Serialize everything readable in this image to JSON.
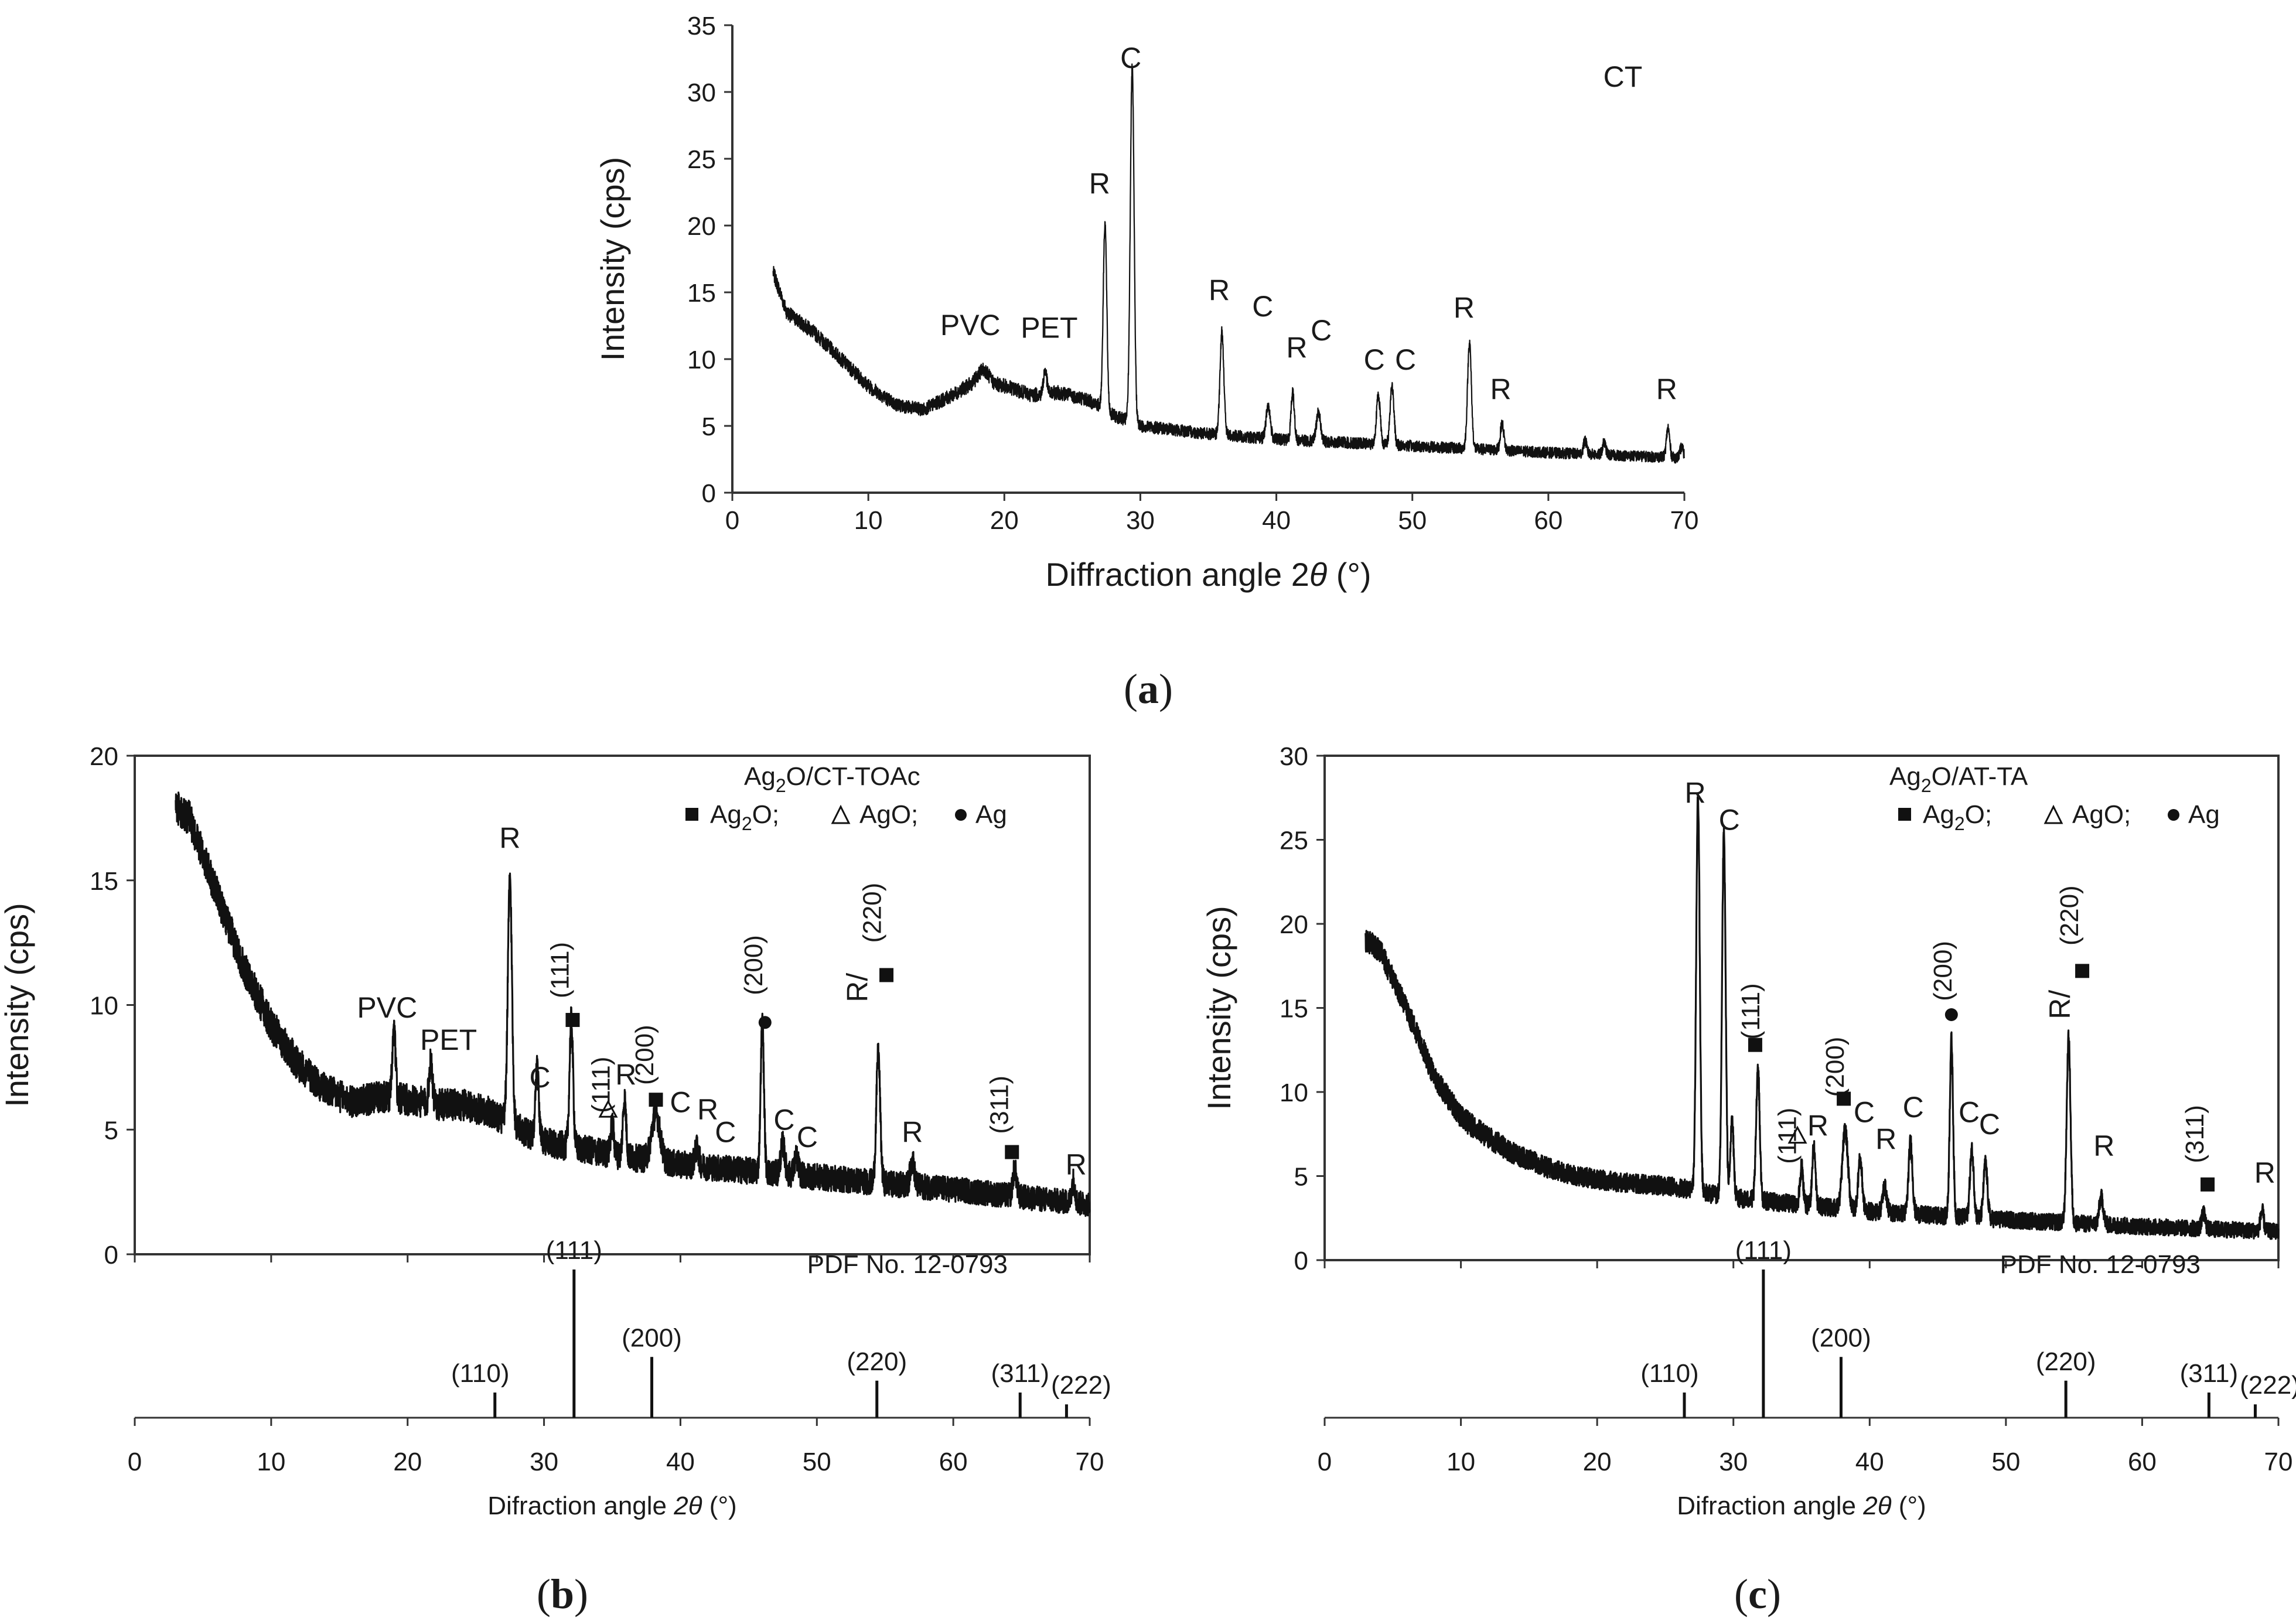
{
  "panel_labels": {
    "a": "a",
    "b": "b",
    "c": "c",
    "open": "(",
    "close": ")"
  },
  "reference": "PDF No. 12-0793",
  "colors": {
    "line": "#111111",
    "axis": "#333333",
    "text": "#1a1a1a"
  },
  "chart_data": [
    {
      "id": "a",
      "type": "line",
      "title": "CT",
      "xlabel_prefix": "Diffraction angle 2",
      "xlabel_theta": "θ",
      "xlabel_suffix": " (°)",
      "ylabel": "Intensity (cps)",
      "xlim": [
        0,
        70
      ],
      "ylim": [
        0,
        35
      ],
      "xticks": [
        0,
        10,
        20,
        30,
        40,
        50,
        60,
        70
      ],
      "yticks": [
        0,
        5,
        10,
        15,
        20,
        25,
        30,
        35
      ],
      "x_start": 3,
      "x_end": 70,
      "baseline": [
        [
          3,
          16.5
        ],
        [
          4,
          13.5
        ],
        [
          6,
          12
        ],
        [
          8,
          10
        ],
        [
          10,
          8
        ],
        [
          12,
          6.6
        ],
        [
          14,
          6.2
        ],
        [
          16,
          7.2
        ],
        [
          18,
          8.4
        ],
        [
          20,
          8
        ],
        [
          22,
          7.3
        ],
        [
          24,
          7.5
        ],
        [
          26,
          7
        ],
        [
          27,
          6.5
        ],
        [
          28,
          5.8
        ],
        [
          30,
          5
        ],
        [
          35,
          4.4
        ],
        [
          40,
          4
        ],
        [
          50,
          3.5
        ],
        [
          60,
          3
        ],
        [
          70,
          2.6
        ]
      ],
      "peaks": [
        [
          18.5,
          0.9,
          0.35
        ],
        [
          23,
          1.8,
          0.12
        ],
        [
          27.4,
          14,
          0.13
        ],
        [
          29.4,
          26.5,
          0.14
        ],
        [
          36,
          7.7,
          0.14
        ],
        [
          39.4,
          2.5,
          0.15
        ],
        [
          41.2,
          3.6,
          0.12
        ],
        [
          43.1,
          2.2,
          0.15
        ],
        [
          47.5,
          3.7,
          0.14
        ],
        [
          48.5,
          4.4,
          0.14
        ],
        [
          54.2,
          8,
          0.14
        ],
        [
          56.6,
          2,
          0.13
        ],
        [
          62.7,
          1,
          0.12
        ],
        [
          64.1,
          0.9,
          0.12
        ],
        [
          68.8,
          2.2,
          0.12
        ],
        [
          69.8,
          0.8,
          0.12
        ]
      ],
      "noise": 0.55,
      "labels": [
        {
          "text": "C",
          "x": 29.3,
          "y": 31.8
        },
        {
          "text": "R",
          "x": 27.0,
          "y": 22.4
        },
        {
          "text": "R",
          "x": 35.8,
          "y": 14.4
        },
        {
          "text": "PVC",
          "x": 17.5,
          "y": 11.8
        },
        {
          "text": "PET",
          "x": 23.3,
          "y": 11.6
        },
        {
          "text": "C",
          "x": 39.0,
          "y": 13.2
        },
        {
          "text": "R",
          "x": 41.5,
          "y": 10.1
        },
        {
          "text": "C",
          "x": 43.3,
          "y": 11.4
        },
        {
          "text": "C",
          "x": 47.2,
          "y": 9.2
        },
        {
          "text": "C",
          "x": 49.5,
          "y": 9.2
        },
        {
          "text": "R",
          "x": 53.8,
          "y": 13.1
        },
        {
          "text": "R",
          "x": 56.5,
          "y": 7.0
        },
        {
          "text": "R",
          "x": 68.7,
          "y": 7.0
        }
      ]
    },
    {
      "id": "b",
      "type": "line",
      "title_main": "Ag",
      "title_sub": "2",
      "title_rest": "O/CT-TOAc",
      "legend_ag2o": "Ag",
      "legend_ag2o_sub": "2",
      "legend_ag2o_rest": "O;",
      "legend_ago": "AgO;",
      "legend_ag": "Ag",
      "xlabel_prefix": "Difraction angle ",
      "xlabel_theta": "2θ",
      "xlabel_suffix": " (°)",
      "ylabel": "Intensity (cps)",
      "xlim": [
        0,
        70
      ],
      "ylim": [
        0,
        20
      ],
      "xticks": [
        0,
        10,
        20,
        30,
        40,
        50,
        60,
        70
      ],
      "yticks": [
        0,
        5,
        10,
        15,
        20
      ],
      "x_start": 3,
      "x_end": 70,
      "baseline": [
        [
          3,
          18
        ],
        [
          4,
          17.5
        ],
        [
          6,
          14.5
        ],
        [
          8,
          11.5
        ],
        [
          10,
          9.2
        ],
        [
          12,
          7.6
        ],
        [
          14,
          6.6
        ],
        [
          16,
          6.1
        ],
        [
          18,
          6.3
        ],
        [
          20,
          6.2
        ],
        [
          22,
          6
        ],
        [
          24,
          6
        ],
        [
          26,
          5.7
        ],
        [
          28,
          5.1
        ],
        [
          30,
          4.5
        ],
        [
          35,
          4
        ],
        [
          40,
          3.6
        ],
        [
          50,
          3.1
        ],
        [
          60,
          2.6
        ],
        [
          70,
          2
        ]
      ],
      "peaks": [
        [
          19,
          2.7,
          0.12
        ],
        [
          21.7,
          1.8,
          0.12
        ],
        [
          27.5,
          9.8,
          0.15
        ],
        [
          29.5,
          2.8,
          0.12
        ],
        [
          32,
          5.1,
          0.13
        ],
        [
          35,
          1.2,
          0.12
        ],
        [
          35.9,
          2.3,
          0.12
        ],
        [
          38.2,
          1.9,
          0.3
        ],
        [
          41.2,
          0.7,
          0.15
        ],
        [
          46,
          6,
          0.12
        ],
        [
          47.5,
          1.2,
          0.15
        ],
        [
          48.5,
          0.7,
          0.15
        ],
        [
          54.5,
          5.2,
          0.14
        ],
        [
          57,
          1,
          0.15
        ],
        [
          64.5,
          1.1,
          0.13
        ],
        [
          68.8,
          0.9,
          0.12
        ]
      ],
      "noise": 0.7,
      "labels": [
        {
          "text": "R",
          "x": 27.5,
          "y": 16.3,
          "rot": 0
        },
        {
          "text": "PVC",
          "x": 18.5,
          "y": 9.5,
          "rot": 0
        },
        {
          "text": "PET",
          "x": 23.0,
          "y": 8.2,
          "rot": 0
        },
        {
          "text": "C",
          "x": 29.7,
          "y": 6.7,
          "rot": 0
        },
        {
          "text": "(111)",
          "x": 31.8,
          "y": 11.4,
          "rot": -90
        },
        {
          "text": "(111)",
          "x": 34.8,
          "y": 6.8,
          "rot": -90
        },
        {
          "text": "R",
          "x": 36.0,
          "y": 6.8,
          "rot": 0
        },
        {
          "text": "(200)",
          "x": 38.0,
          "y": 8.0,
          "rot": -90
        },
        {
          "text": "C",
          "x": 40.0,
          "y": 5.7,
          "rot": 0
        },
        {
          "text": "R",
          "x": 42.0,
          "y": 5.4,
          "rot": 0
        },
        {
          "text": "C",
          "x": 43.3,
          "y": 4.5,
          "rot": 0
        },
        {
          "text": "(200)",
          "x": 46.0,
          "y": 11.6,
          "rot": -90
        },
        {
          "text": "C",
          "x": 47.6,
          "y": 5.0,
          "rot": 0
        },
        {
          "text": "C",
          "x": 49.3,
          "y": 4.3,
          "rot": 0
        },
        {
          "text": "R/",
          "x": 53.7,
          "y": 10.7,
          "rot": -90
        },
        {
          "text": "(220)",
          "x": 54.7,
          "y": 13.7,
          "rot": -90
        },
        {
          "text": "R",
          "x": 57.0,
          "y": 4.5,
          "rot": 0
        },
        {
          "text": "(311)",
          "x": 64.0,
          "y": 6.0,
          "rot": -90
        },
        {
          "text": "R",
          "x": 69.0,
          "y": 3.2,
          "rot": 0
        }
      ],
      "markers": [
        {
          "type": "square",
          "x": 32.1,
          "y": 9.4
        },
        {
          "type": "square",
          "x": 38.2,
          "y": 6.2
        },
        {
          "type": "square",
          "x": 55.1,
          "y": 11.2
        },
        {
          "type": "square",
          "x": 64.3,
          "y": 4.1
        },
        {
          "type": "circle",
          "x": 46.2,
          "y": 9.3
        },
        {
          "type": "triangle",
          "x": 34.7,
          "y": 5.8
        }
      ],
      "ref_pattern": {
        "xlim": [
          0,
          70
        ],
        "xticks": [
          0,
          10,
          20,
          30,
          40,
          50,
          60,
          70
        ],
        "lines": [
          {
            "label": "(110)",
            "x": 26.4,
            "h": 0.17
          },
          {
            "label": "(111)",
            "x": 32.2,
            "h": 1.0
          },
          {
            "label": "(200)",
            "x": 37.9,
            "h": 0.41
          },
          {
            "label": "(220)",
            "x": 54.4,
            "h": 0.25
          },
          {
            "label": "(311)",
            "x": 64.9,
            "h": 0.17
          },
          {
            "label": "(222)",
            "x": 68.3,
            "h": 0.09
          }
        ]
      }
    },
    {
      "id": "c",
      "type": "line",
      "title_main": "Ag",
      "title_sub": "2",
      "title_rest": "O/AT-TA",
      "legend_ag2o": "Ag",
      "legend_ag2o_sub": "2",
      "legend_ag2o_rest": "O;",
      "legend_ago": "AgO;",
      "legend_ag": "Ag",
      "xlabel_prefix": "Difraction angle ",
      "xlabel_theta": "2θ",
      "xlabel_suffix": " (°)",
      "ylabel": "Intensity (cps)",
      "xlim": [
        0,
        70
      ],
      "ylim": [
        0,
        30
      ],
      "xticks": [
        0,
        10,
        20,
        30,
        40,
        50,
        60,
        70
      ],
      "yticks": [
        0,
        5,
        10,
        15,
        20,
        25,
        30
      ],
      "x_start": 3,
      "x_end": 70,
      "baseline": [
        [
          3,
          19
        ],
        [
          4,
          18.5
        ],
        [
          6,
          15
        ],
        [
          8,
          11
        ],
        [
          10,
          8.5
        ],
        [
          12,
          7.3
        ],
        [
          14,
          6.3
        ],
        [
          16,
          5.6
        ],
        [
          18,
          5.1
        ],
        [
          20,
          4.8
        ],
        [
          22,
          4.6
        ],
        [
          24,
          4.5
        ],
        [
          26,
          4.3
        ],
        [
          28,
          4
        ],
        [
          30,
          3.7
        ],
        [
          35,
          3.3
        ],
        [
          40,
          2.9
        ],
        [
          50,
          2.4
        ],
        [
          60,
          2
        ],
        [
          70,
          1.7
        ]
      ],
      "peaks": [
        [
          27.4,
          23.6,
          0.13
        ],
        [
          29.3,
          21.5,
          0.13
        ],
        [
          29.9,
          4.5,
          0.12
        ],
        [
          31.8,
          7.9,
          0.13
        ],
        [
          35,
          2.3,
          0.12
        ],
        [
          35.9,
          3.5,
          0.12
        ],
        [
          38.2,
          4.7,
          0.2
        ],
        [
          39.3,
          3,
          0.15
        ],
        [
          41.1,
          1.5,
          0.15
        ],
        [
          43,
          4.3,
          0.14
        ],
        [
          46,
          10.5,
          0.12
        ],
        [
          47.5,
          4,
          0.14
        ],
        [
          48.5,
          3.3,
          0.14
        ],
        [
          54.6,
          11,
          0.14
        ],
        [
          57,
          1.6,
          0.15
        ],
        [
          64.5,
          0.9,
          0.13
        ],
        [
          68.8,
          1.2,
          0.12
        ]
      ],
      "noise": 0.7,
      "labels": [
        {
          "text": "R",
          "x": 27.2,
          "y": 27.2,
          "rot": 0
        },
        {
          "text": "C",
          "x": 29.7,
          "y": 25.6,
          "rot": 0
        },
        {
          "text": "(111)",
          "x": 31.9,
          "y": 14.8,
          "rot": -90
        },
        {
          "text": "(111)",
          "x": 34.6,
          "y": 7.4,
          "rot": -90
        },
        {
          "text": "R",
          "x": 36.2,
          "y": 7.4,
          "rot": 0
        },
        {
          "text": "(200)",
          "x": 38.1,
          "y": 11.5,
          "rot": -90
        },
        {
          "text": "C",
          "x": 39.6,
          "y": 8.2,
          "rot": 0
        },
        {
          "text": "R",
          "x": 41.2,
          "y": 6.6,
          "rot": 0
        },
        {
          "text": "C",
          "x": 43.2,
          "y": 8.5,
          "rot": 0
        },
        {
          "text": "(200)",
          "x": 46.0,
          "y": 17.2,
          "rot": -90
        },
        {
          "text": "C",
          "x": 47.3,
          "y": 8.2,
          "rot": 0
        },
        {
          "text": "C",
          "x": 48.8,
          "y": 7.5,
          "rot": 0
        },
        {
          "text": "R/",
          "x": 54.7,
          "y": 15.2,
          "rot": -90
        },
        {
          "text": "(220)",
          "x": 55.3,
          "y": 20.5,
          "rot": -90
        },
        {
          "text": "R",
          "x": 57.2,
          "y": 6.2,
          "rot": 0
        },
        {
          "text": "(311)",
          "x": 64.5,
          "y": 7.5,
          "rot": -90
        },
        {
          "text": "R",
          "x": 69.0,
          "y": 4.6,
          "rot": 0
        }
      ],
      "markers": [
        {
          "type": "square",
          "x": 31.6,
          "y": 12.8
        },
        {
          "type": "square",
          "x": 38.1,
          "y": 9.6
        },
        {
          "type": "square",
          "x": 55.6,
          "y": 17.2
        },
        {
          "type": "square",
          "x": 64.8,
          "y": 4.5
        },
        {
          "type": "circle",
          "x": 46.0,
          "y": 14.6
        },
        {
          "type": "triangle",
          "x": 34.7,
          "y": 7.4
        }
      ],
      "ref_pattern": {
        "xlim": [
          0,
          70
        ],
        "xticks": [
          0,
          10,
          20,
          30,
          40,
          50,
          60,
          70
        ],
        "lines": [
          {
            "label": "(110)",
            "x": 26.4,
            "h": 0.17
          },
          {
            "label": "(111)",
            "x": 32.2,
            "h": 1.0
          },
          {
            "label": "(200)",
            "x": 37.9,
            "h": 0.41
          },
          {
            "label": "(220)",
            "x": 54.4,
            "h": 0.25
          },
          {
            "label": "(311)",
            "x": 64.9,
            "h": 0.17
          },
          {
            "label": "(222)",
            "x": 68.3,
            "h": 0.09
          }
        ]
      }
    }
  ]
}
